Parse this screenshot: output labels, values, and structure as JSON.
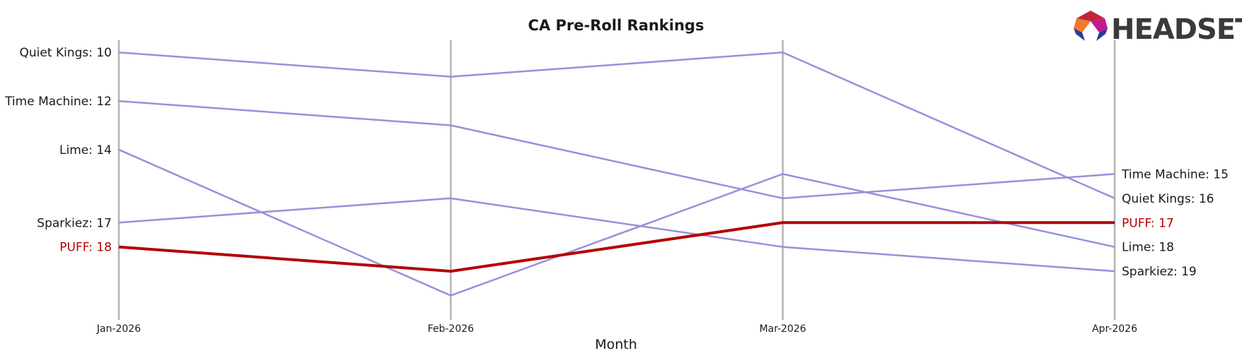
{
  "chart_data": {
    "type": "line",
    "title": "CA Pre-Roll Rankings",
    "xlabel": "Month",
    "ylabel": "",
    "x": [
      "Jan-2026",
      "Feb-2026",
      "Mar-2026",
      "Apr-2026"
    ],
    "y_inverted": true,
    "ylim": [
      21,
      9.5
    ],
    "grid": false,
    "series": [
      {
        "name": "Quiet Kings",
        "values": [
          10,
          11,
          10,
          16
        ],
        "color": "#9b8fd9",
        "highlight": false
      },
      {
        "name": "Time Machine",
        "values": [
          12,
          13,
          16,
          15
        ],
        "color": "#9b8fd9",
        "highlight": false
      },
      {
        "name": "Lime",
        "values": [
          14,
          20,
          15,
          18
        ],
        "color": "#9b8fd9",
        "highlight": false
      },
      {
        "name": "Sparkiez",
        "values": [
          17,
          16,
          18,
          19
        ],
        "color": "#9b8fd9",
        "highlight": false
      },
      {
        "name": "PUFF",
        "values": [
          18,
          19,
          17,
          17
        ],
        "color": "#b30000",
        "highlight": true
      }
    ],
    "start_labels": [
      {
        "series": "Quiet Kings",
        "text": "Quiet Kings: 10"
      },
      {
        "series": "Time Machine",
        "text": "Time Machine: 12"
      },
      {
        "series": "Lime",
        "text": "Lime: 14"
      },
      {
        "series": "Sparkiez",
        "text": "Sparkiez: 17"
      },
      {
        "series": "PUFF",
        "text": "PUFF: 18"
      }
    ],
    "end_labels": [
      {
        "series": "Time Machine",
        "text": "Time Machine: 15"
      },
      {
        "series": "Quiet Kings",
        "text": "Quiet Kings: 16"
      },
      {
        "series": "PUFF",
        "text": "PUFF: 17"
      },
      {
        "series": "Lime",
        "text": "Lime: 18"
      },
      {
        "series": "Sparkiez",
        "text": "Sparkiez: 19"
      }
    ]
  },
  "logo": {
    "text": "HEADSET",
    "icon": "headset-hexagon-logo"
  },
  "colors": {
    "highlight": "#b30000",
    "normal_line": "#9b8fd9",
    "month_line": "#b3b3b3",
    "text": "#1a1a1a"
  }
}
